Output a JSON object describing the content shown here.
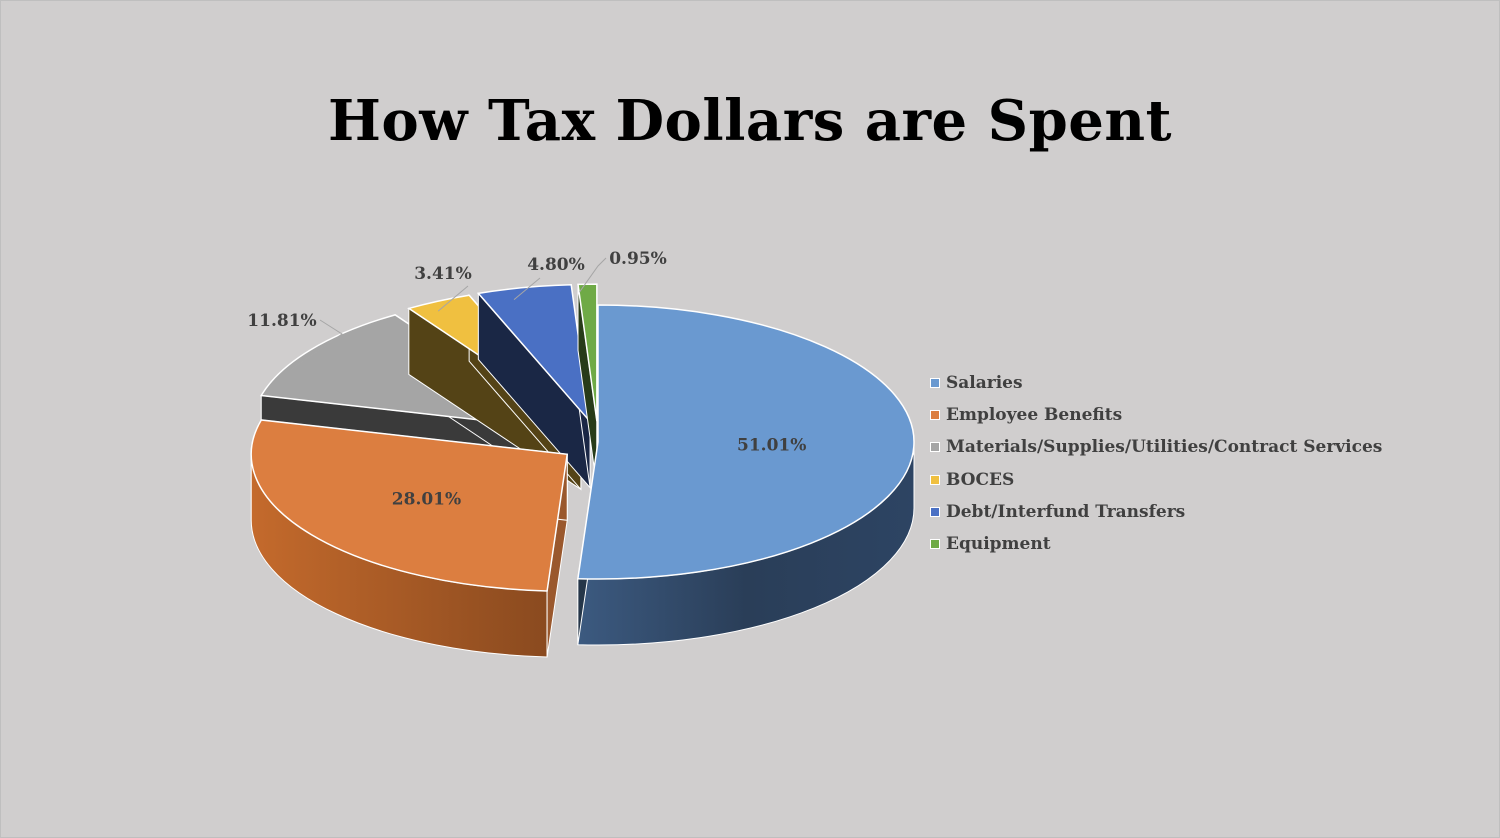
{
  "chart_data": {
    "type": "pie",
    "title": "How Tax Dollars are Spent",
    "categories": [
      "Salaries",
      "Employee Benefits",
      "Materials/Supplies/Utilities/Contract Services",
      "BOCES",
      "Debt/Interfund Transfers",
      "Equipment"
    ],
    "values": [
      51.01,
      28.01,
      11.81,
      3.41,
      4.8,
      0.95
    ],
    "data_labels": [
      "51.01%",
      "28.01%",
      "11.81%",
      "3.41%",
      "4.80%",
      "0.95%"
    ],
    "colors": [
      "#6a99d0",
      "#dc7e40",
      "#a5a5a5",
      "#f0c040",
      "#4a70c4",
      "#6faa46"
    ],
    "legend_position": "right",
    "style": "3d-exploded"
  }
}
